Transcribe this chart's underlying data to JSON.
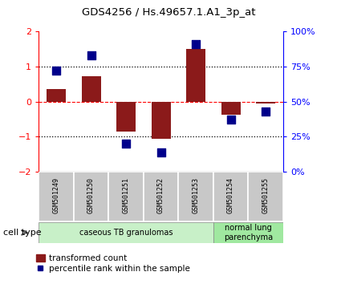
{
  "title": "GDS4256 / Hs.49657.1.A1_3p_at",
  "samples": [
    "GSM501249",
    "GSM501250",
    "GSM501251",
    "GSM501252",
    "GSM501253",
    "GSM501254",
    "GSM501255"
  ],
  "transformed_count": [
    0.35,
    0.72,
    -0.85,
    -1.05,
    1.5,
    -0.38,
    -0.05
  ],
  "percentile_rank": [
    72,
    83,
    20,
    14,
    91,
    37,
    43
  ],
  "ylim_left": [
    -2,
    2
  ],
  "ylim_right": [
    0,
    100
  ],
  "yticks_left": [
    -2,
    -1,
    0,
    1,
    2
  ],
  "yticks_right": [
    0,
    25,
    50,
    75,
    100
  ],
  "ytick_labels_right": [
    "0%",
    "25%",
    "50%",
    "75%",
    "100%"
  ],
  "bar_color": "#8B1A1A",
  "dot_color": "#00008B",
  "bar_width": 0.55,
  "dot_size": 55,
  "cell_type_groups": [
    {
      "label": "caseous TB granulomas",
      "indices": [
        0,
        1,
        2,
        3,
        4
      ],
      "color": "#c8f0c8"
    },
    {
      "label": "normal lung\nparenchyma",
      "indices": [
        5,
        6
      ],
      "color": "#a0e8a0"
    }
  ],
  "legend_bar_label": "transformed count",
  "legend_dot_label": "percentile rank within the sample",
  "cell_type_label": "cell type",
  "bg_color": "#ffffff"
}
